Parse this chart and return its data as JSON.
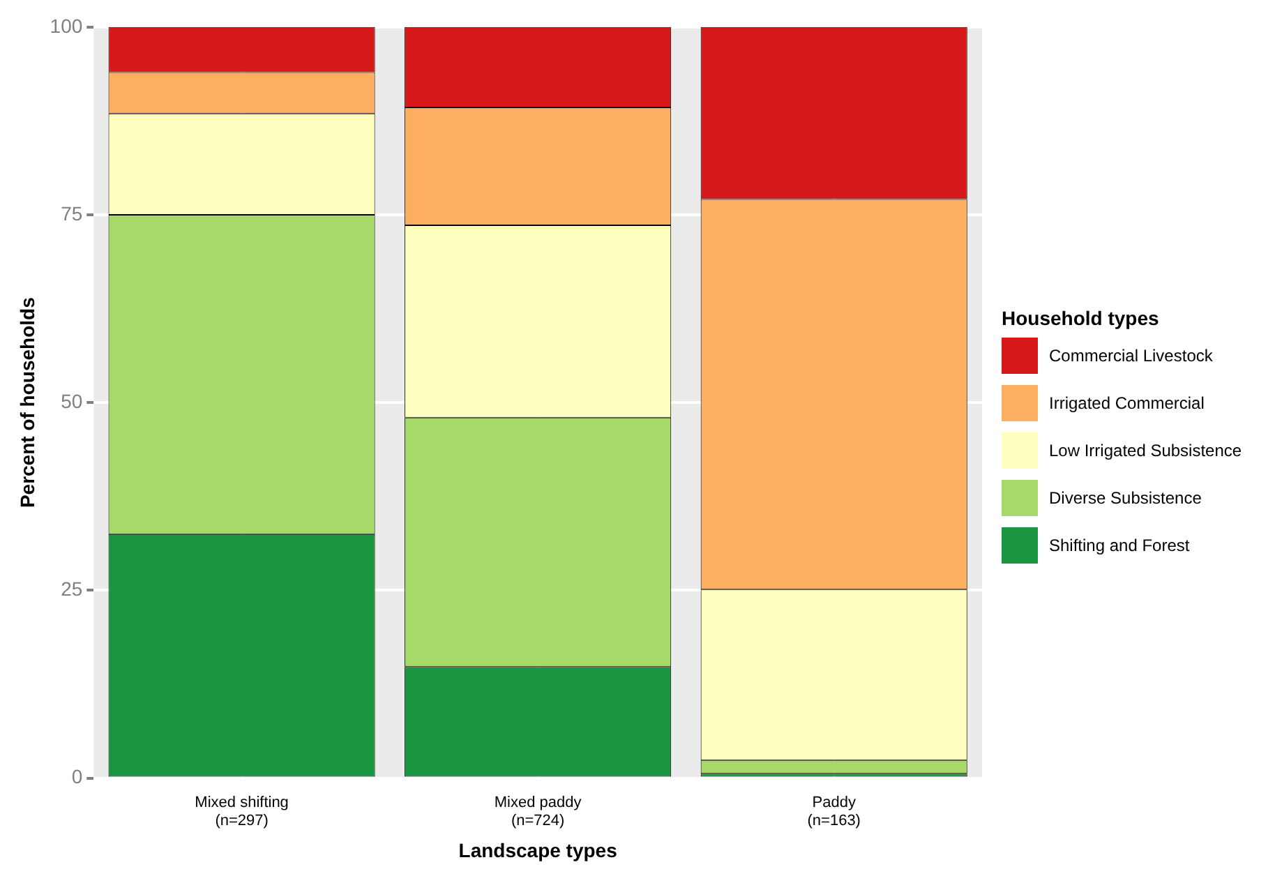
{
  "chart_data": {
    "type": "bar",
    "stacked": true,
    "xlabel": "Landscape types",
    "ylabel": "Percent of households",
    "legend_title": "Household types",
    "legend": "right",
    "grid": true,
    "categories": [
      "Mixed shifting\n(n=297)",
      "Mixed paddy\n(n=724)",
      "Paddy\n(n=163)"
    ],
    "ylim": [
      0,
      100
    ],
    "yticks": [
      0,
      25,
      50,
      75,
      100
    ],
    "series": [
      {
        "name": "Shifting and Forest",
        "color": "#1a9641",
        "values": [
          32.5,
          14.8,
          0.6
        ]
      },
      {
        "name": "Diverse Subsistence",
        "color": "#a6d96a",
        "values": [
          42.5,
          33.2,
          1.8
        ]
      },
      {
        "name": "Low Irrigated Subsistence",
        "color": "#ffffbf",
        "values": [
          13.5,
          25.6,
          22.7
        ]
      },
      {
        "name": "Irrigated Commercial",
        "color": "#fdae61",
        "values": [
          5.5,
          15.7,
          52.0
        ]
      },
      {
        "name": "Commercial Livestock",
        "color": "#d7191c",
        "values": [
          6.0,
          10.7,
          22.9
        ]
      }
    ]
  }
}
